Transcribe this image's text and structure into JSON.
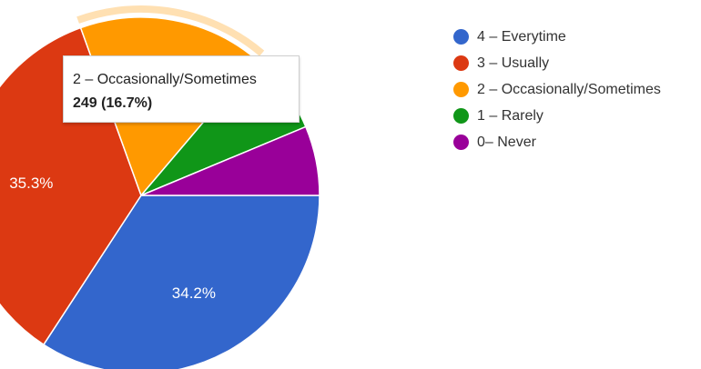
{
  "chart_data": {
    "type": "pie",
    "title": "",
    "slices": [
      {
        "label": "4 – Everytime",
        "value": 34.2,
        "color": "#3366cc",
        "display": "34.2%"
      },
      {
        "label": "3 – Usually",
        "value": 35.3,
        "color": "#dc3912",
        "display": "35.3%"
      },
      {
        "label": "2 – Occasionally/Sometimes",
        "value": 16.7,
        "color": "#ff9900",
        "display": ""
      },
      {
        "label": "1 – Rarely",
        "value": 7.5,
        "color": "#109618",
        "display": ""
      },
      {
        "label": "0– Never",
        "value": 6.3,
        "color": "#990099",
        "display": ""
      }
    ],
    "legend_position": "right",
    "highlighted_slice": "2 – Occasionally/Sometimes"
  },
  "tooltip": {
    "label": "2 – Occasionally/Sometimes",
    "value": "249 (16.7%)"
  }
}
